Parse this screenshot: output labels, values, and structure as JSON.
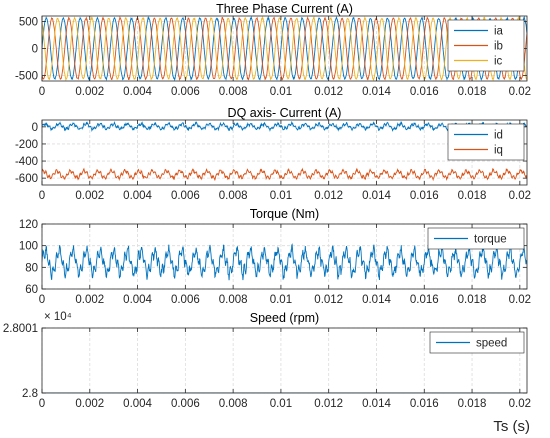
{
  "x_axis_label": "Ts (s)",
  "chart_data": [
    {
      "type": "line",
      "title": "Three Phase Current (A)",
      "xlim": [
        0,
        0.0203
      ],
      "ylim": [
        -600,
        600
      ],
      "yticks": [
        500,
        0,
        -500
      ],
      "ytick_labels": [
        "500",
        "0",
        "-500"
      ],
      "xticks": [
        0,
        0.002,
        0.004,
        0.006,
        0.008,
        0.01,
        0.012,
        0.014,
        0.016,
        0.018,
        0.02
      ],
      "xtick_labels": [
        "0",
        "0.002",
        "0.004",
        "0.006",
        "0.008",
        "0.01",
        "0.012",
        "0.014",
        "0.016",
        "0.018",
        "0.02"
      ],
      "grid": true,
      "legend_position": "top-right",
      "series": [
        {
          "name": "ia",
          "color": "#0072BD",
          "amplitude": 560,
          "phase_deg": 0,
          "noise": 25
        },
        {
          "name": "ib",
          "color": "#D95319",
          "amplitude": 560,
          "phase_deg": -120,
          "noise": 25
        },
        {
          "name": "ic",
          "color": "#EDB120",
          "amplitude": 560,
          "phase_deg": 120,
          "noise": 25
        }
      ],
      "frequency_hz": 1400
    },
    {
      "type": "line",
      "title": "DQ axis- Current (A)",
      "xlim": [
        0,
        0.0203
      ],
      "ylim": [
        -680,
        80
      ],
      "yticks": [
        0,
        -200,
        -400,
        -600
      ],
      "ytick_labels": [
        "0",
        "-200",
        "-400",
        "-600"
      ],
      "xticks": [
        0,
        0.002,
        0.004,
        0.006,
        0.008,
        0.01,
        0.012,
        0.014,
        0.016,
        0.018,
        0.02
      ],
      "xtick_labels": [
        "0",
        "0.002",
        "0.004",
        "0.006",
        "0.008",
        "0.01",
        "0.012",
        "0.014",
        "0.016",
        "0.018",
        "0.02"
      ],
      "grid": true,
      "legend_position": "top-right",
      "series": [
        {
          "name": "id",
          "color": "#0072BD",
          "mean": 5,
          "ripple": 40,
          "noise": 18
        },
        {
          "name": "iq",
          "color": "#D95319",
          "mean": -555,
          "ripple": 55,
          "noise": 18
        }
      ]
    },
    {
      "type": "line",
      "title": "Torque (Nm)",
      "xlim": [
        0,
        0.0203
      ],
      "ylim": [
        60,
        120
      ],
      "yticks": [
        120,
        100,
        80,
        60
      ],
      "ytick_labels": [
        "120",
        "100",
        "80",
        "60"
      ],
      "xticks": [
        0,
        0.002,
        0.004,
        0.006,
        0.008,
        0.01,
        0.012,
        0.014,
        0.016,
        0.018,
        0.02
      ],
      "xtick_labels": [
        "0",
        "0.002",
        "0.004",
        "0.006",
        "0.008",
        "0.01",
        "0.012",
        "0.014",
        "0.016",
        "0.018",
        "0.02"
      ],
      "grid": true,
      "legend_position": "top-right",
      "series": [
        {
          "name": "torque",
          "color": "#0072BD",
          "mean": 85,
          "ripple": 14,
          "noise": 5
        }
      ]
    },
    {
      "type": "line",
      "title": "Speed (rpm)",
      "xlim": [
        0,
        0.0203
      ],
      "ylim": [
        2.8,
        2.8001
      ],
      "yticks": [
        2.8001,
        2.8
      ],
      "ytick_labels": [
        "2.8001",
        "2.8"
      ],
      "y_exponent_label": "× 10⁴",
      "xticks": [
        0,
        0.002,
        0.004,
        0.006,
        0.008,
        0.01,
        0.012,
        0.014,
        0.016,
        0.018,
        0.02
      ],
      "xtick_labels": [
        "0",
        "0.002",
        "0.004",
        "0.006",
        "0.008",
        "0.01",
        "0.012",
        "0.014",
        "0.016",
        "0.018",
        "0.02"
      ],
      "grid": true,
      "legend_position": "top-right",
      "series": [
        {
          "name": "speed",
          "color": "#0072BD",
          "constant": 28000
        }
      ]
    }
  ]
}
